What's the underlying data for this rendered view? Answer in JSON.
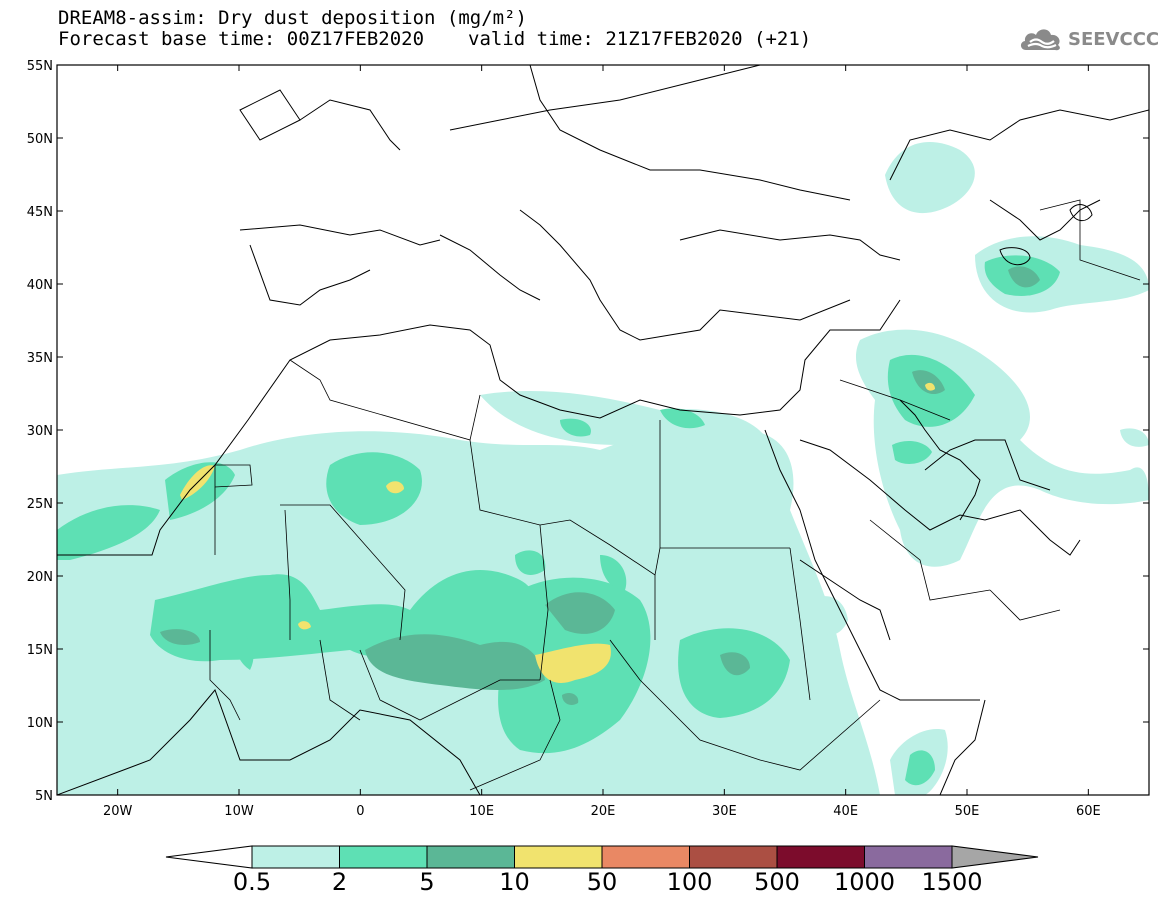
{
  "title": {
    "line1": "DREAM8-assim: Dry dust deposition (mg/m²)",
    "base_time": "Forecast base time: 00Z17FEB2020",
    "valid_time": "valid time: 21Z17FEB2020 (+21)"
  },
  "logo": {
    "text": "SEEVCCC",
    "icon": "cloud-icon"
  },
  "map": {
    "lat_ticks": [
      "55N",
      "50N",
      "45N",
      "40N",
      "35N",
      "30N",
      "25N",
      "20N",
      "15N",
      "10N",
      "5N"
    ],
    "lon_ticks": [
      "20W",
      "10W",
      "0",
      "10E",
      "20E",
      "30E",
      "40E",
      "50E",
      "60E"
    ],
    "extent": {
      "lon": [
        -25,
        65
      ],
      "lat": [
        5,
        55
      ]
    }
  },
  "colorbar": {
    "labels": [
      "0.5",
      "2",
      "5",
      "10",
      "50",
      "100",
      "500",
      "1000",
      "1500"
    ],
    "colors": [
      "#bdf0e6",
      "#5ee0b4",
      "#5bb796",
      "#f1e36e",
      "#e98864",
      "#ab4f43",
      "#7c0c2c",
      "#8a6a9e"
    ],
    "under_color": "#ffffff",
    "over_color": "#a6a6a6"
  }
}
